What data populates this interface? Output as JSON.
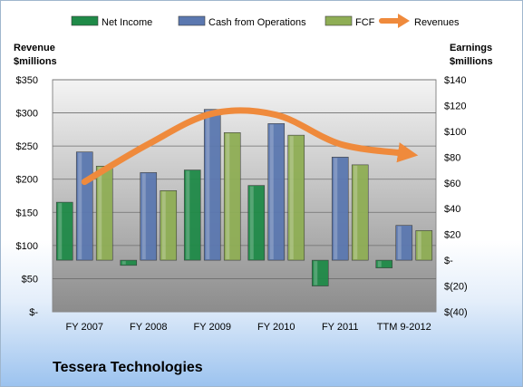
{
  "company": "Tessera Technologies",
  "colors": {
    "net_income": "#1f8a48",
    "cash_from_operations": "#5b78b0",
    "fcf": "#8fae55",
    "revenues": "#ef8a3c",
    "plot_bg_top": "#f4f4f4",
    "plot_bg_bottom": "#8c8c8c"
  },
  "chart_data": {
    "type": "bar",
    "categories": [
      "FY 2007",
      "FY 2008",
      "FY 2009",
      "FY 2010",
      "FY 2011",
      "TTM 9-2012"
    ],
    "series": [
      {
        "name": "Net Income",
        "axis": "right",
        "type": "bar",
        "values": [
          45,
          -4,
          70,
          58,
          -20,
          -6
        ]
      },
      {
        "name": "Cash from Operations",
        "axis": "right",
        "type": "bar",
        "values": [
          84,
          68,
          117,
          106,
          80,
          27
        ]
      },
      {
        "name": "FCF",
        "axis": "right",
        "type": "bar",
        "values": [
          73,
          54,
          99,
          97,
          74,
          23
        ]
      },
      {
        "name": "Revenues",
        "axis": "left",
        "type": "line",
        "values": [
          196,
          253,
          299,
          297,
          253,
          239
        ]
      }
    ],
    "left_axis": {
      "title_line1": "Revenue",
      "title_line2": "$millions",
      "ylim": [
        0,
        350
      ],
      "ticks": [
        0,
        50,
        100,
        150,
        200,
        250,
        300,
        350
      ],
      "tick_labels": [
        "$-",
        "$50",
        "$100",
        "$150",
        "$200",
        "$250",
        "$300",
        "$350"
      ]
    },
    "right_axis": {
      "title_line1": "Earnings",
      "title_line2": "$millions",
      "ylim": [
        -40,
        140
      ],
      "ticks": [
        -40,
        -20,
        0,
        20,
        40,
        60,
        80,
        100,
        120,
        140
      ],
      "tick_labels": [
        "$(40)",
        "$(20)",
        "$-",
        "$20",
        "$40",
        "$60",
        "$80",
        "$100",
        "$120",
        "$140"
      ]
    },
    "grid": true,
    "legend": "top"
  }
}
